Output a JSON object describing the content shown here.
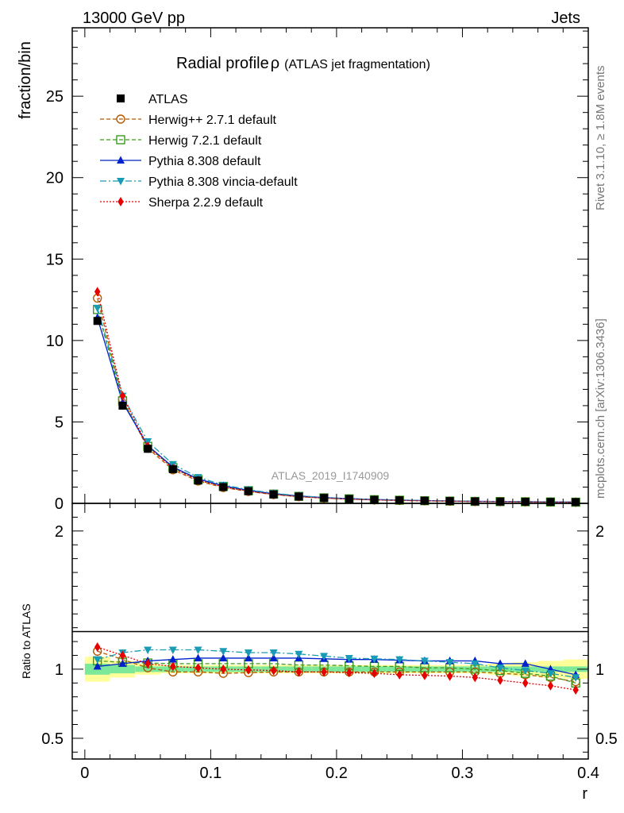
{
  "header": {
    "left": "13000 GeV pp",
    "right": "Jets"
  },
  "side_labels": {
    "rivet": "Rivet 3.1.10, ≥ 1.8M events",
    "mcplots": "mcplots.cern.ch [arXiv:1306.3436]"
  },
  "watermark": "ATLAS_2019_I1740909",
  "chart_data": {
    "type": "line",
    "title": "Radial profile",
    "title_symbol": "ρ",
    "subtitle": "(ATLAS jet fragmentation)",
    "xlabel": "r",
    "ylabel": "fraction/bin",
    "ratio_ylabel": "Ratio to ATLAS",
    "xlim": [
      -0.01,
      0.4
    ],
    "ylim": [
      0,
      29.2
    ],
    "ratio_ylim": [
      0.35,
      2.2
    ],
    "x_ticks": [
      0,
      0.1,
      0.2,
      0.3,
      0.4
    ],
    "x_tick_labels": [
      "0",
      "0.1",
      "0.2",
      "0.3",
      "0.4"
    ],
    "y_ticks": [
      0,
      5,
      10,
      15,
      20,
      25
    ],
    "y_tick_labels": [
      "0",
      "5",
      "10",
      "15",
      "20",
      "25"
    ],
    "ratio_ticks": [
      0.5,
      1,
      2
    ],
    "ratio_tick_labels": [
      "0.5",
      "1",
      "2"
    ],
    "legend_position": "top-left",
    "x": [
      0.01,
      0.03,
      0.05,
      0.07,
      0.09,
      0.11,
      0.13,
      0.15,
      0.17,
      0.19,
      0.21,
      0.23,
      0.25,
      0.27,
      0.29,
      0.31,
      0.33,
      0.35,
      0.37,
      0.39
    ],
    "bin_edges": [
      0,
      0.02,
      0.04,
      0.06,
      0.08,
      0.1,
      0.12,
      0.14,
      0.16,
      0.18,
      0.2,
      0.22,
      0.24,
      0.26,
      0.28,
      0.3,
      0.32,
      0.34,
      0.36,
      0.38,
      0.4
    ],
    "uncertainty_band": {
      "inner": [
        0.04,
        0.03,
        0.02,
        0.02,
        0.02,
        0.02,
        0.02,
        0.02,
        0.02,
        0.02,
        0.02,
        0.02,
        0.02,
        0.02,
        0.02,
        0.02,
        0.02,
        0.02,
        0.02,
        0.02
      ],
      "outer": [
        0.09,
        0.06,
        0.04,
        0.03,
        0.03,
        0.03,
        0.03,
        0.03,
        0.03,
        0.03,
        0.03,
        0.03,
        0.03,
        0.03,
        0.03,
        0.03,
        0.04,
        0.05,
        0.06,
        0.07
      ],
      "inner_color": "#7ee89a",
      "outer_color": "#ffff99"
    },
    "series": [
      {
        "name": "ATLAS",
        "color": "#000000",
        "marker": "square-filled",
        "line": "none",
        "values": [
          11.2,
          6.0,
          3.35,
          2.1,
          1.4,
          1.0,
          0.75,
          0.55,
          0.42,
          0.33,
          0.27,
          0.22,
          0.19,
          0.16,
          0.14,
          0.12,
          0.11,
          0.1,
          0.09,
          0.08
        ]
      },
      {
        "name": "Herwig++ 2.7.1 default",
        "color": "#b35900",
        "marker": "circle-open",
        "line": "dashed",
        "values": [
          12.6,
          6.4,
          3.38,
          2.06,
          1.37,
          0.97,
          0.73,
          0.54,
          0.41,
          0.32,
          0.26,
          0.21,
          0.18,
          0.156,
          0.137,
          0.117,
          0.106,
          0.096,
          0.085,
          0.073
        ],
        "ratio": [
          1.13,
          1.07,
          1.01,
          0.98,
          0.98,
          0.97,
          0.975,
          0.98,
          0.98,
          0.98,
          0.98,
          0.98,
          0.98,
          0.98,
          0.98,
          0.98,
          0.97,
          0.96,
          0.94,
          0.91
        ]
      },
      {
        "name": "Herwig 7.2.1 default",
        "color": "#3b9a1e",
        "marker": "square-open",
        "line": "dashed",
        "values": [
          11.9,
          6.3,
          3.5,
          2.19,
          1.46,
          1.04,
          0.78,
          0.57,
          0.43,
          0.34,
          0.277,
          0.225,
          0.194,
          0.162,
          0.141,
          0.12,
          0.109,
          0.097,
          0.086,
          0.072
        ],
        "ratio": [
          1.06,
          1.05,
          1.045,
          1.04,
          1.04,
          1.04,
          1.04,
          1.04,
          1.03,
          1.03,
          1.025,
          1.02,
          1.02,
          1.01,
          1.01,
          1.0,
          0.99,
          0.97,
          0.95,
          0.9
        ]
      },
      {
        "name": "Pythia 8.308 default",
        "color": "#0022cc",
        "marker": "triangle-up-filled",
        "line": "solid",
        "values": [
          11.4,
          6.2,
          3.55,
          2.23,
          1.5,
          1.07,
          0.8,
          0.59,
          0.45,
          0.35,
          0.29,
          0.235,
          0.2,
          0.17,
          0.148,
          0.126,
          0.114,
          0.104,
          0.09,
          0.077
        ],
        "ratio": [
          1.02,
          1.04,
          1.06,
          1.07,
          1.08,
          1.08,
          1.08,
          1.08,
          1.08,
          1.075,
          1.07,
          1.07,
          1.065,
          1.06,
          1.06,
          1.06,
          1.04,
          1.04,
          1.0,
          0.96
        ]
      },
      {
        "name": "Pythia 8.308 vincia-default",
        "color": "#1a9bb5",
        "marker": "triangle-down-filled",
        "line": "dashdot",
        "values": [
          12.0,
          6.6,
          3.8,
          2.4,
          1.6,
          1.13,
          0.84,
          0.62,
          0.47,
          0.36,
          0.29,
          0.237,
          0.2,
          0.17,
          0.147,
          0.125,
          0.111,
          0.1,
          0.09,
          0.075
        ],
        "ratio": [
          1.07,
          1.12,
          1.14,
          1.14,
          1.14,
          1.13,
          1.12,
          1.12,
          1.11,
          1.095,
          1.08,
          1.075,
          1.07,
          1.06,
          1.05,
          1.04,
          1.01,
          0.99,
          0.97,
          0.94
        ]
      },
      {
        "name": "Sherpa 2.2.9 default",
        "color": "#e60000",
        "marker": "diamond-filled",
        "line": "dotted",
        "values": [
          13.0,
          6.6,
          3.5,
          2.15,
          1.43,
          1.01,
          0.75,
          0.55,
          0.41,
          0.32,
          0.26,
          0.21,
          0.18,
          0.153,
          0.133,
          0.113,
          0.1,
          0.09,
          0.08,
          0.068
        ],
        "ratio": [
          1.16,
          1.1,
          1.04,
          1.02,
          1.01,
          1.0,
          0.995,
          0.99,
          0.98,
          0.98,
          0.975,
          0.97,
          0.96,
          0.955,
          0.95,
          0.94,
          0.92,
          0.9,
          0.88,
          0.85
        ]
      }
    ]
  }
}
